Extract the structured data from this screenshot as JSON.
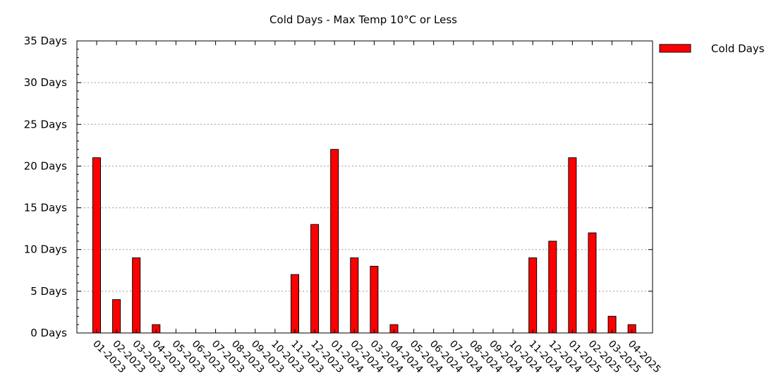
{
  "chart_data": {
    "type": "bar",
    "title": "Cold Days - Max Temp 10°C or Less",
    "xlabel": "",
    "ylabel": "",
    "y_unit_suffix": " Days",
    "ylim": [
      0,
      35
    ],
    "yticks": [
      0,
      5,
      10,
      15,
      20,
      25,
      30,
      35
    ],
    "grid": true,
    "legend_position": "right",
    "categories": [
      "01-2023",
      "02-2023",
      "03-2023",
      "04-2023",
      "05-2023",
      "06-2023",
      "07-2023",
      "08-2023",
      "09-2023",
      "10-2023",
      "11-2023",
      "12-2023",
      "01-2024",
      "02-2024",
      "03-2024",
      "04-2024",
      "05-2024",
      "06-2024",
      "07-2024",
      "08-2024",
      "09-2024",
      "10-2024",
      "11-2024",
      "12-2024",
      "01-2025",
      "02-2025",
      "03-2025",
      "04-2025"
    ],
    "series": [
      {
        "name": "Cold Days",
        "color": "#ff0000",
        "values": [
          21,
          4,
          9,
          1,
          0,
          0,
          0,
          0,
          0,
          0,
          7,
          13,
          22,
          9,
          8,
          1,
          0,
          0,
          0,
          0,
          0,
          0,
          9,
          11,
          21,
          12,
          2,
          1
        ]
      }
    ]
  }
}
